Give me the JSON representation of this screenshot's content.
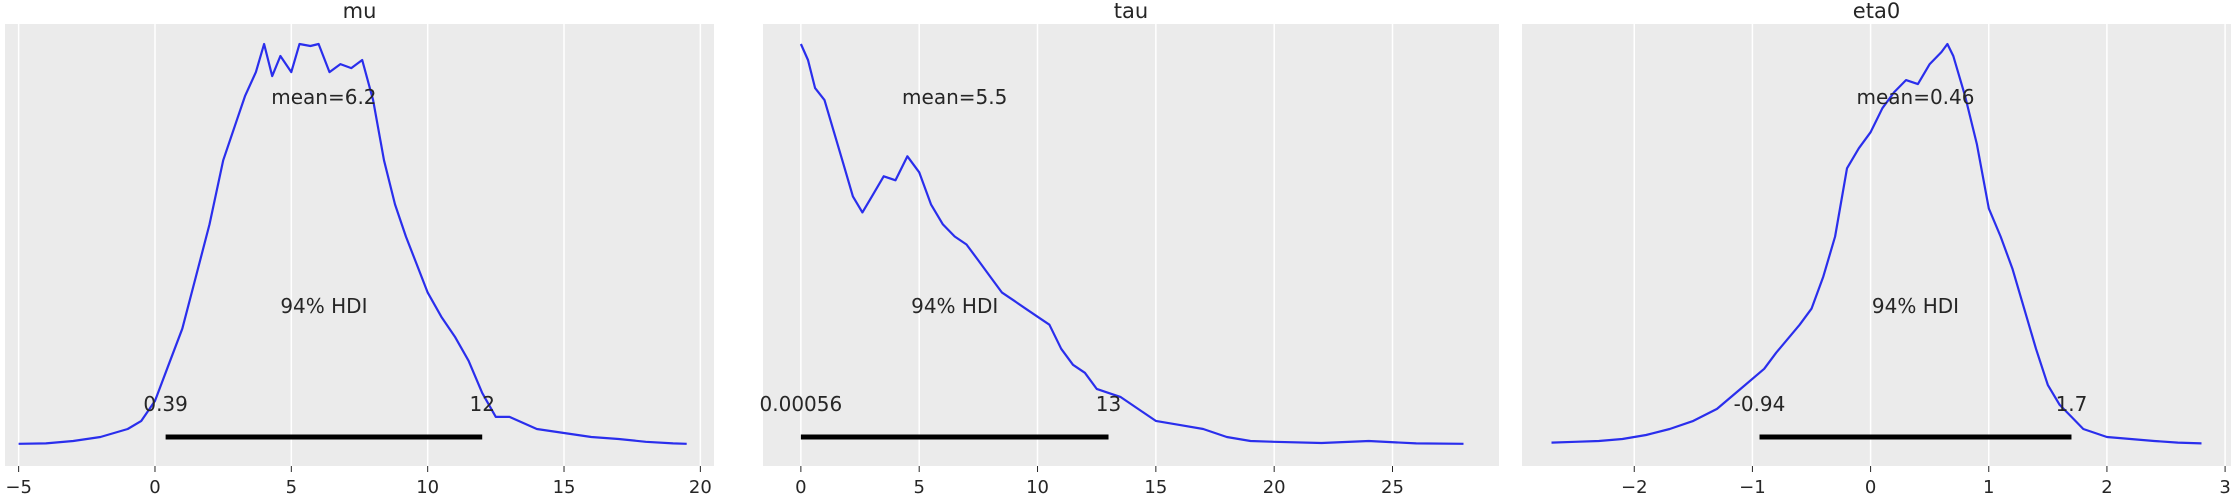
{
  "style": {
    "panel_bg": "#ebebeb",
    "grid": "#ffffff",
    "line": "#2a2eec",
    "hdi": "#000000"
  },
  "chart_data": [
    {
      "type": "line",
      "title": "mu",
      "xlim": [
        -5.5,
        20.5
      ],
      "ylim": [
        0,
        1
      ],
      "grid": true,
      "xticks": [
        -5,
        0,
        5,
        10,
        15,
        20
      ],
      "xtick_labels": [
        "−5",
        "0",
        "5",
        "10",
        "15",
        "20"
      ],
      "mean_label": "mean=6.2",
      "hdi_text": "94% HDI",
      "hdi": [
        0.39,
        12
      ],
      "hdi_labels": [
        "0.39",
        "12"
      ],
      "x": [
        -5,
        -4,
        -3,
        -2,
        -1,
        -0.5,
        0,
        0.5,
        1,
        1.5,
        2,
        2.5,
        3,
        3.3,
        3.7,
        4,
        4.3,
        4.6,
        5,
        5.3,
        5.7,
        6,
        6.4,
        6.8,
        7.2,
        7.6,
        8,
        8.4,
        8.8,
        9.2,
        9.6,
        10,
        10.5,
        11,
        11.5,
        12,
        12.5,
        13,
        14,
        15,
        16,
        17,
        18,
        19,
        19.5
      ],
      "y": [
        0.003,
        0.004,
        0.01,
        0.02,
        0.04,
        0.06,
        0.11,
        0.2,
        0.29,
        0.42,
        0.55,
        0.71,
        0.81,
        0.87,
        0.93,
        1.0,
        0.92,
        0.97,
        0.93,
        1.0,
        0.995,
        1.0,
        0.93,
        0.95,
        0.94,
        0.96,
        0.86,
        0.71,
        0.6,
        0.52,
        0.45,
        0.38,
        0.32,
        0.27,
        0.21,
        0.13,
        0.07,
        0.07,
        0.04,
        0.03,
        0.02,
        0.015,
        0.008,
        0.004,
        0.003
      ]
    },
    {
      "type": "line",
      "title": "tau",
      "xlim": [
        -1.6,
        29.5
      ],
      "ylim": [
        0,
        1
      ],
      "grid": true,
      "xticks": [
        0,
        5,
        10,
        15,
        20,
        25
      ],
      "xtick_labels": [
        "0",
        "5",
        "10",
        "15",
        "20",
        "25"
      ],
      "mean_label": "mean=5.5",
      "hdi_text": "94% HDI",
      "hdi": [
        0.00056,
        13
      ],
      "hdi_labels": [
        "0.00056",
        "13"
      ],
      "x": [
        0,
        0.3,
        0.6,
        1,
        1.4,
        1.8,
        2.2,
        2.6,
        3,
        3.5,
        4,
        4.5,
        5,
        5.5,
        6,
        6.5,
        7,
        7.5,
        8,
        8.5,
        9,
        9.5,
        10,
        10.5,
        11,
        11.5,
        12,
        12.5,
        13,
        13.5,
        14,
        14.5,
        15,
        16,
        17,
        18,
        19,
        20,
        22,
        24,
        26,
        28
      ],
      "y": [
        1.0,
        0.96,
        0.89,
        0.86,
        0.78,
        0.7,
        0.62,
        0.58,
        0.62,
        0.67,
        0.66,
        0.72,
        0.68,
        0.6,
        0.55,
        0.52,
        0.5,
        0.46,
        0.42,
        0.38,
        0.36,
        0.34,
        0.32,
        0.3,
        0.24,
        0.2,
        0.18,
        0.14,
        0.13,
        0.12,
        0.1,
        0.08,
        0.06,
        0.05,
        0.04,
        0.02,
        0.01,
        0.008,
        0.005,
        0.01,
        0.004,
        0.003
      ]
    },
    {
      "type": "line",
      "title": "eta0",
      "xlim": [
        -2.95,
        3.05
      ],
      "ylim": [
        0,
        1
      ],
      "grid": true,
      "xticks": [
        -2,
        -1,
        0,
        1,
        2,
        3
      ],
      "xtick_labels": [
        "−2",
        "−1",
        "0",
        "1",
        "2",
        "3"
      ],
      "mean_label": "mean=0.46",
      "hdi_text": "94% HDI",
      "hdi": [
        -0.94,
        1.7
      ],
      "hdi_labels": [
        "-0.94",
        "1.7"
      ],
      "x": [
        -2.7,
        -2.5,
        -2.3,
        -2.1,
        -1.9,
        -1.7,
        -1.5,
        -1.3,
        -1.1,
        -0.9,
        -0.8,
        -0.6,
        -0.5,
        -0.4,
        -0.3,
        -0.2,
        -0.1,
        0,
        0.1,
        0.2,
        0.3,
        0.4,
        0.5,
        0.6,
        0.65,
        0.7,
        0.8,
        0.9,
        1.0,
        1.1,
        1.2,
        1.3,
        1.4,
        1.5,
        1.6,
        1.7,
        1.8,
        1.9,
        2.0,
        2.2,
        2.4,
        2.6,
        2.8
      ],
      "y": [
        0.006,
        0.008,
        0.01,
        0.015,
        0.025,
        0.04,
        0.06,
        0.09,
        0.14,
        0.19,
        0.23,
        0.3,
        0.34,
        0.42,
        0.52,
        0.69,
        0.74,
        0.78,
        0.84,
        0.88,
        0.91,
        0.9,
        0.95,
        0.98,
        1.0,
        0.97,
        0.87,
        0.75,
        0.59,
        0.52,
        0.44,
        0.34,
        0.24,
        0.15,
        0.1,
        0.07,
        0.04,
        0.03,
        0.02,
        0.015,
        0.01,
        0.006,
        0.004
      ]
    }
  ]
}
